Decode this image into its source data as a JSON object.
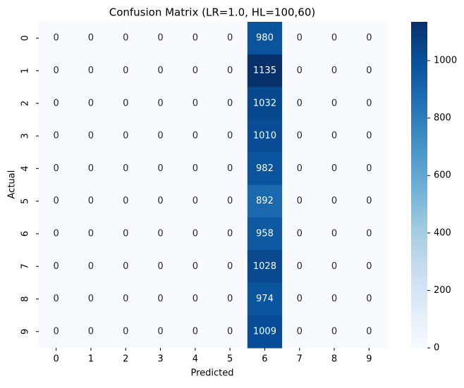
{
  "chart_data": {
    "type": "heatmap",
    "title": "Confusion Matrix (LR=1.0, HL=100,60)",
    "xlabel": "Predicted",
    "ylabel": "Actual",
    "x_categories": [
      "0",
      "1",
      "2",
      "3",
      "4",
      "5",
      "6",
      "7",
      "8",
      "9"
    ],
    "y_categories": [
      "0",
      "1",
      "2",
      "3",
      "4",
      "5",
      "6",
      "7",
      "8",
      "9"
    ],
    "values": [
      [
        0,
        0,
        0,
        0,
        0,
        0,
        980,
        0,
        0,
        0
      ],
      [
        0,
        0,
        0,
        0,
        0,
        0,
        1135,
        0,
        0,
        0
      ],
      [
        0,
        0,
        0,
        0,
        0,
        0,
        1032,
        0,
        0,
        0
      ],
      [
        0,
        0,
        0,
        0,
        0,
        0,
        1010,
        0,
        0,
        0
      ],
      [
        0,
        0,
        0,
        0,
        0,
        0,
        982,
        0,
        0,
        0
      ],
      [
        0,
        0,
        0,
        0,
        0,
        0,
        892,
        0,
        0,
        0
      ],
      [
        0,
        0,
        0,
        0,
        0,
        0,
        958,
        0,
        0,
        0
      ],
      [
        0,
        0,
        0,
        0,
        0,
        0,
        1028,
        0,
        0,
        0
      ],
      [
        0,
        0,
        0,
        0,
        0,
        0,
        974,
        0,
        0,
        0
      ],
      [
        0,
        0,
        0,
        0,
        0,
        0,
        1009,
        0,
        0,
        0
      ]
    ],
    "colors": [
      "#f7fbff",
      "#deebf7",
      "#c6dbef",
      "#9ecae1",
      "#6baed6",
      "#4292c6",
      "#2171b5",
      "#08519c",
      "#08306b"
    ],
    "clim": [
      0,
      1135
    ],
    "cticks": [
      0,
      200,
      400,
      600,
      800,
      1000
    ]
  }
}
